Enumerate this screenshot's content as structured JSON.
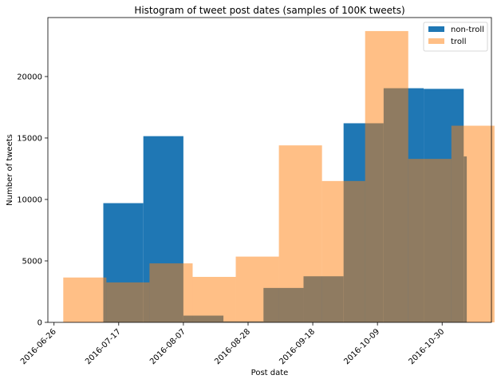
{
  "chart_data": {
    "type": "bar",
    "title": "Histogram of tweet post dates (samples of 100K tweets)",
    "xlabel": "Post date",
    "ylabel": "Number of tweets",
    "x_is_date": true,
    "xlim": [
      "2016-06-24",
      "2016-11-15"
    ],
    "ylim": [
      0,
      24800
    ],
    "xticks": [
      "2016-06-26",
      "2016-07-17",
      "2016-08-07",
      "2016-08-28",
      "2016-09-18",
      "2016-10-09",
      "2016-10-30"
    ],
    "yticks": [
      0,
      5000,
      10000,
      15000,
      20000
    ],
    "grid": false,
    "legend_position": "upper right",
    "series": [
      {
        "name": "non-troll",
        "color": "#1f77b4",
        "alpha": 1,
        "bins": [
          {
            "start": "2016-07-12",
            "end": "2016-07-25",
            "value": 9700
          },
          {
            "start": "2016-07-25",
            "end": "2016-08-07",
            "value": 15150
          },
          {
            "start": "2016-08-07",
            "end": "2016-08-20",
            "value": 550
          },
          {
            "start": "2016-08-20",
            "end": "2016-09-02",
            "value": 80
          },
          {
            "start": "2016-09-02",
            "end": "2016-09-15",
            "value": 2800
          },
          {
            "start": "2016-09-15",
            "end": "2016-09-28",
            "value": 3750
          },
          {
            "start": "2016-09-28",
            "end": "2016-10-11",
            "value": 16200
          },
          {
            "start": "2016-10-11",
            "end": "2016-10-24",
            "value": 19050
          },
          {
            "start": "2016-10-24",
            "end": "2016-11-06",
            "value": 19000
          },
          {
            "start": "2016-11-06",
            "end": "2016-11-07",
            "value": 13500
          }
        ]
      },
      {
        "name": "troll",
        "color": "#ff7f0e",
        "alpha": 0.5,
        "bins": [
          {
            "start": "2016-06-29",
            "end": "2016-07-13",
            "value": 3650
          },
          {
            "start": "2016-07-13",
            "end": "2016-07-27",
            "value": 3250
          },
          {
            "start": "2016-07-27",
            "end": "2016-08-10",
            "value": 4800
          },
          {
            "start": "2016-08-10",
            "end": "2016-08-24",
            "value": 3700
          },
          {
            "start": "2016-08-24",
            "end": "2016-09-07",
            "value": 5350
          },
          {
            "start": "2016-09-07",
            "end": "2016-09-21",
            "value": 14400
          },
          {
            "start": "2016-09-21",
            "end": "2016-10-05",
            "value": 11500
          },
          {
            "start": "2016-10-05",
            "end": "2016-10-19",
            "value": 23700
          },
          {
            "start": "2016-10-19",
            "end": "2016-11-02",
            "value": 13300
          },
          {
            "start": "2016-11-02",
            "end": "2016-11-16",
            "value": 16000
          }
        ]
      }
    ]
  }
}
